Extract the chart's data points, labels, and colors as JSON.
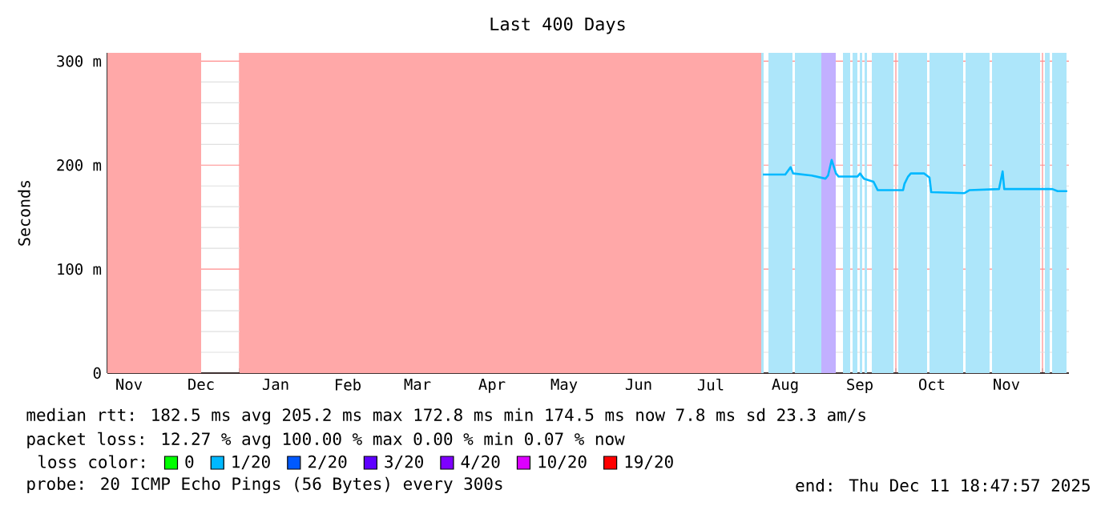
{
  "chart_data": {
    "type": "line",
    "title": "Last 400 Days",
    "ylabel": "Seconds",
    "legend_title": "loss color:",
    "legend": "bottom",
    "grid": true,
    "line_style": "solid",
    "xlim": [
      "2024-11-07",
      "2025-12-12"
    ],
    "xticks": [
      {
        "value": "2024-12-01",
        "label": null
      },
      {
        "value": "2025-01-01",
        "label": null
      },
      {
        "value": "2025-02-01",
        "label": null
      },
      {
        "value": "2025-03-01",
        "label": null
      },
      {
        "value": "2025-04-01",
        "label": null
      },
      {
        "value": "2025-05-01",
        "label": null
      },
      {
        "value": "2025-06-01",
        "label": null
      },
      {
        "value": "2025-07-01",
        "label": null
      },
      {
        "value": "2025-08-01",
        "label": null
      },
      {
        "value": "2025-09-01",
        "label": null
      },
      {
        "value": "2025-10-01",
        "label": null
      },
      {
        "value": "2025-11-01",
        "label": null
      },
      {
        "value": "2025-12-01",
        "label": null
      },
      {
        "value": "2024-11-16",
        "label": "Nov"
      },
      {
        "value": "2024-12-16",
        "label": "Dec"
      },
      {
        "value": "2025-01-16",
        "label": "Jan"
      },
      {
        "value": "2025-02-15",
        "label": "Feb"
      },
      {
        "value": "2025-03-16",
        "label": "Mar"
      },
      {
        "value": "2025-04-16",
        "label": "Apr"
      },
      {
        "value": "2025-05-16",
        "label": "May"
      },
      {
        "value": "2025-06-16",
        "label": "Jun"
      },
      {
        "value": "2025-07-16",
        "label": "Jul"
      },
      {
        "value": "2025-08-16",
        "label": "Aug"
      },
      {
        "value": "2025-09-16",
        "label": "Sep"
      },
      {
        "value": "2025-10-16",
        "label": "Oct"
      },
      {
        "value": "2025-11-16",
        "label": "Nov"
      }
    ],
    "ylim": [
      0,
      308
    ],
    "yticks": [
      {
        "value": 0,
        "label": "0"
      },
      {
        "value": 100,
        "label": "100 m"
      },
      {
        "value": 200,
        "label": "200 m"
      },
      {
        "value": 300,
        "label": "300 m"
      },
      {
        "value": 20,
        "label": null
      },
      {
        "value": 40,
        "label": null
      },
      {
        "value": 60,
        "label": null
      },
      {
        "value": 80,
        "label": null
      },
      {
        "value": 120,
        "label": null
      },
      {
        "value": 140,
        "label": null
      },
      {
        "value": 160,
        "label": null
      },
      {
        "value": 180,
        "label": null
      },
      {
        "value": 220,
        "label": null
      },
      {
        "value": 240,
        "label": null
      },
      {
        "value": 260,
        "label": null
      },
      {
        "value": 280,
        "label": null
      }
    ],
    "bands": [
      {
        "axis": "x",
        "from": "2024-11-07",
        "to": "2024-12-16",
        "color": "#ffa8a8"
      },
      {
        "axis": "x",
        "from": "2025-01-01",
        "to": "2025-08-06",
        "color": "#ffa8a8"
      },
      {
        "axis": "x",
        "from": "2025-08-06",
        "to": "2025-08-07",
        "color": "#ade6fa"
      },
      {
        "axis": "x",
        "from": "2025-08-09",
        "to": "2025-08-19",
        "color": "#ade6fa"
      },
      {
        "axis": "x",
        "from": "2025-08-20",
        "to": "2025-08-31",
        "color": "#ade6fa"
      },
      {
        "axis": "x",
        "from": "2025-08-31",
        "to": "2025-09-06",
        "color": "#c2b0ff"
      },
      {
        "axis": "x",
        "from": "2025-09-09",
        "to": "2025-09-12",
        "color": "#ade6fa"
      },
      {
        "axis": "x",
        "from": "2025-09-13",
        "to": "2025-09-15",
        "color": "#ade6fa"
      },
      {
        "axis": "x",
        "from": "2025-09-16",
        "to": "2025-09-17",
        "color": "#ade6fa"
      },
      {
        "axis": "x",
        "from": "2025-09-18",
        "to": "2025-09-19",
        "color": "#ade6fa"
      },
      {
        "axis": "x",
        "from": "2025-09-21",
        "to": "2025-09-30",
        "color": "#ade6fa"
      },
      {
        "axis": "x",
        "from": "2025-10-02",
        "to": "2025-10-14",
        "color": "#ade6fa"
      },
      {
        "axis": "x",
        "from": "2025-10-15",
        "to": "2025-10-29",
        "color": "#ade6fa"
      },
      {
        "axis": "x",
        "from": "2025-10-30",
        "to": "2025-11-09",
        "color": "#ade6fa"
      },
      {
        "axis": "x",
        "from": "2025-11-10",
        "to": "2025-11-30",
        "color": "#ade6fa"
      },
      {
        "axis": "x",
        "from": "2025-12-02",
        "to": "2025-12-04",
        "color": "#ade6fa"
      },
      {
        "axis": "x",
        "from": "2025-12-05",
        "to": "2025-12-11",
        "color": "#ade6fa"
      }
    ],
    "series": [
      {
        "name": "0",
        "color": "#00ff00"
      },
      {
        "name": "1/20",
        "color": "#00b8ff",
        "x": [
          "2025-08-06T17:00",
          "2025-08-16",
          "2025-08-18T05:00",
          "2025-08-19T07:00",
          "2025-08-27",
          "2025-09-01T17:00",
          "2025-09-02T19:00",
          "2025-09-04T07:00",
          "2025-09-06T02:00",
          "2025-09-07T05:00",
          "2025-09-15",
          "2025-09-16T02:00",
          "2025-09-17T17:00",
          "2025-09-21T17:00",
          "2025-09-23T10:00",
          "2025-10-04",
          "2025-10-04T14:00",
          "2025-10-06T02:00",
          "2025-10-07T05:00",
          "2025-10-12T19:00",
          "2025-10-15",
          "2025-10-15T17:00",
          "2025-10-29T10:00",
          "2025-10-31T17:00",
          "2025-11-12T22:00",
          "2025-11-14T10:00",
          "2025-11-15T02:00",
          "2025-11-21T19:00",
          "2025-12-05T02:00",
          "2025-12-07T07:00",
          "2025-12-11T07:00"
        ],
        "values": [
          191,
          191,
          198,
          192,
          190,
          187,
          190,
          205,
          192,
          189,
          189,
          192,
          187,
          184,
          176,
          176,
          182,
          189,
          192,
          192,
          188,
          174,
          173,
          176,
          177,
          194,
          177,
          177,
          177,
          175,
          175
        ]
      },
      {
        "name": "2/20",
        "color": "#0059ff"
      },
      {
        "name": "3/20",
        "color": "#5e00ff"
      },
      {
        "name": "4/20",
        "color": "#7e00ff"
      },
      {
        "name": "10/20",
        "color": "#dd00ff"
      },
      {
        "name": "19/20",
        "color": "#ff0000"
      }
    ],
    "annotations": [
      "median rtt:  182.5 ms avg  205.2 ms max  172.8 ms min  174.5 ms now  7.8 ms sd  23.3   am/s",
      "packet loss: 12.27 % avg  100.00 % max  0.00 % min  0.07 % now",
      "probe:       20 ICMP Echo Pings (56 Bytes) every 300s",
      "end: Thu Dec 11 18:47:57 2025"
    ]
  }
}
